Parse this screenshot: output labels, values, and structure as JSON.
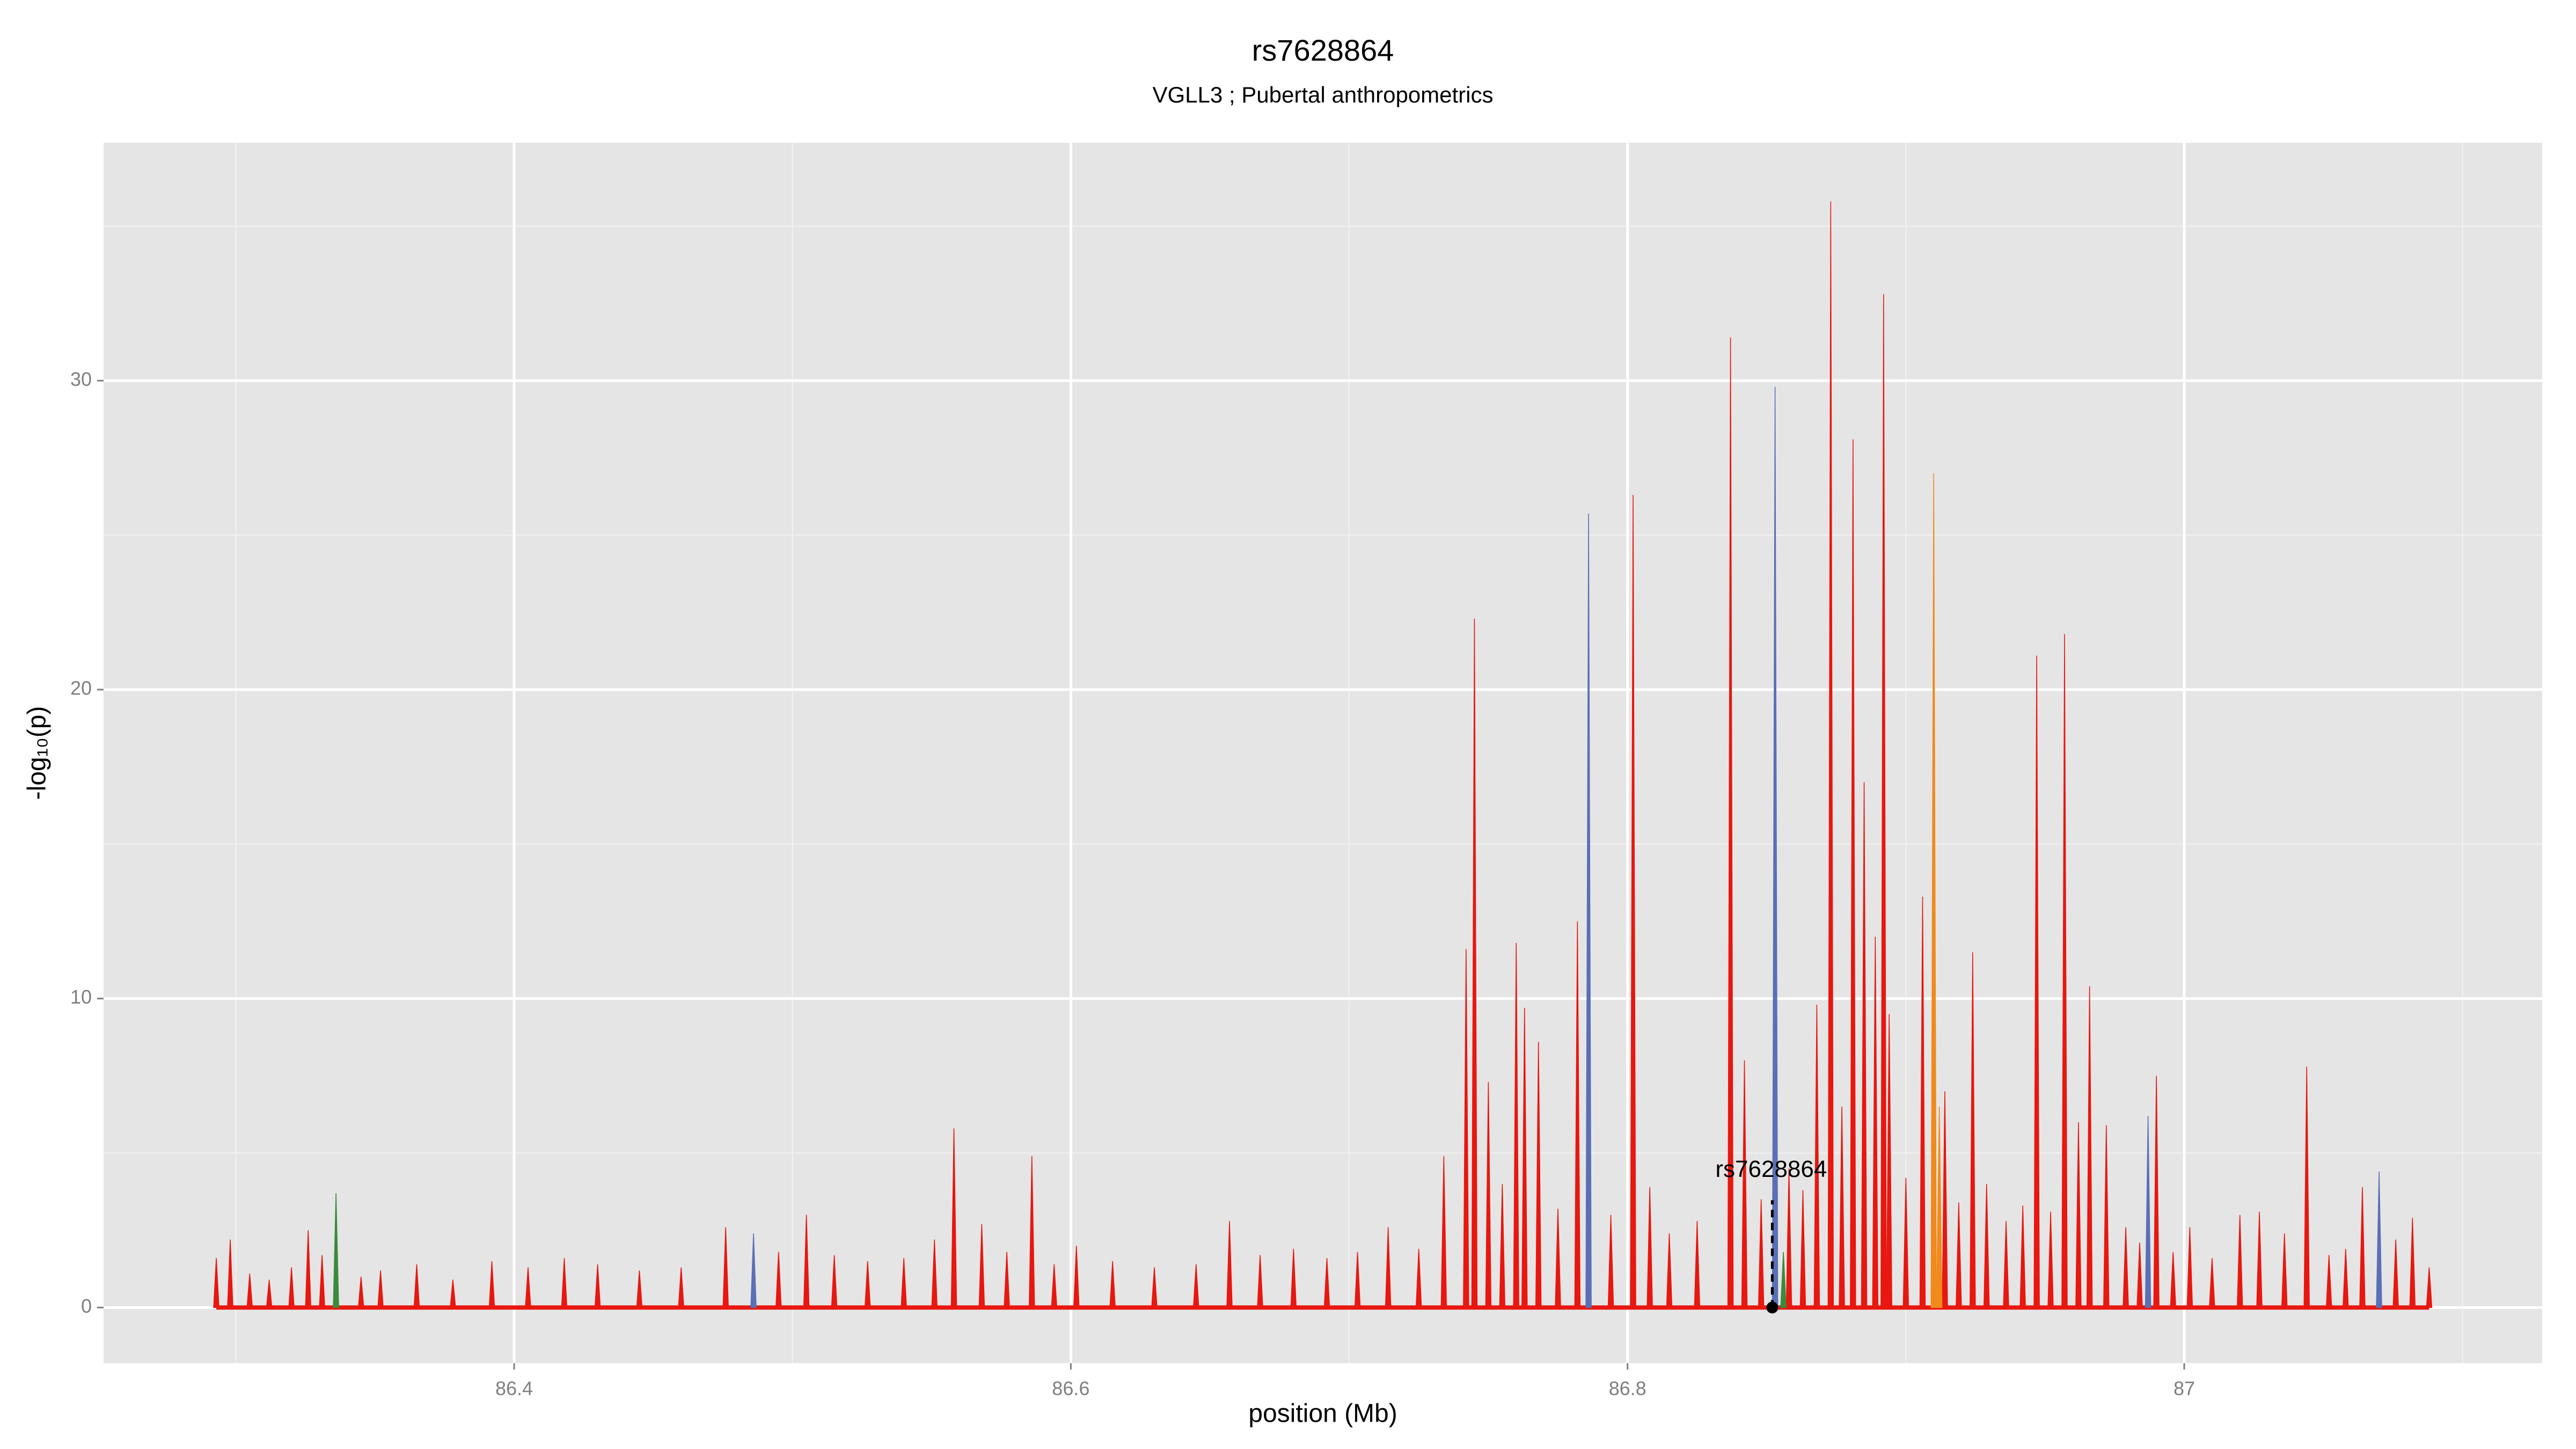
{
  "chart_data": {
    "type": "spike",
    "title": "rs7628864",
    "subtitle": "VGLL3 ; Pubertal anthropometrics",
    "x_label": "position (Mb)",
    "y_label": "-log₁₀(p)",
    "xlim": [
      86.2525,
      87.1286
    ],
    "ylim": [
      -1.8,
      37.7
    ],
    "xticks": [
      86.4,
      86.6,
      86.8,
      87.0
    ],
    "yticks": [
      0,
      10,
      20,
      30
    ],
    "xminor": [
      86.3,
      86.5,
      86.7,
      86.9,
      87.1
    ],
    "yminor": [
      5,
      15,
      25,
      35
    ],
    "grid": true,
    "series": [
      {
        "name": "red",
        "color": "#e8170f",
        "x": [
          86.293,
          86.298,
          86.305,
          86.312,
          86.32,
          86.326,
          86.331,
          86.345,
          86.352,
          86.365,
          86.378,
          86.392,
          86.405,
          86.418,
          86.43,
          86.445,
          86.46,
          86.476,
          86.495,
          86.505,
          86.515,
          86.527,
          86.54,
          86.551,
          86.558,
          86.568,
          86.577,
          86.586,
          86.594,
          86.602,
          86.615,
          86.63,
          86.645,
          86.657,
          86.668,
          86.68,
          86.692,
          86.703,
          86.714,
          86.725,
          86.734,
          86.742,
          86.745,
          86.75,
          86.755,
          86.76,
          86.763,
          86.768,
          86.775,
          86.782,
          86.794,
          86.802,
          86.808,
          86.815,
          86.825,
          86.837,
          86.842,
          86.848,
          86.858,
          86.863,
          86.868,
          86.873,
          86.877,
          86.881,
          86.885,
          86.889,
          86.892,
          86.894,
          86.9,
          86.906,
          86.914,
          86.919,
          86.924,
          86.929,
          86.936,
          86.942,
          86.947,
          86.952,
          86.957,
          86.962,
          86.966,
          86.972,
          86.979,
          86.984,
          86.99,
          86.996,
          87.002,
          87.01,
          87.02,
          87.027,
          87.036,
          87.044,
          87.052,
          87.058,
          87.064,
          87.076,
          87.082,
          87.088
        ],
        "values": [
          1.6,
          2.2,
          1.1,
          0.9,
          1.3,
          2.5,
          1.7,
          1.0,
          1.2,
          1.4,
          0.9,
          1.5,
          1.3,
          1.6,
          1.4,
          1.2,
          1.3,
          2.6,
          1.8,
          3.0,
          1.7,
          1.5,
          1.6,
          2.2,
          5.8,
          2.7,
          1.8,
          4.9,
          1.4,
          2.0,
          1.5,
          1.3,
          1.4,
          2.8,
          1.7,
          1.9,
          1.6,
          1.8,
          2.6,
          1.9,
          4.9,
          11.6,
          22.3,
          7.3,
          4.0,
          11.8,
          9.7,
          8.6,
          3.2,
          12.5,
          3.0,
          26.3,
          3.9,
          2.4,
          2.8,
          31.4,
          8.0,
          3.5,
          4.5,
          3.8,
          9.8,
          35.8,
          6.5,
          28.1,
          17.0,
          12.0,
          32.8,
          9.5,
          4.2,
          13.3,
          7.0,
          3.4,
          11.5,
          4.0,
          2.8,
          3.3,
          21.1,
          3.1,
          21.8,
          6.0,
          10.4,
          5.9,
          2.6,
          2.1,
          7.5,
          1.8,
          2.6,
          1.6,
          3.0,
          3.1,
          2.4,
          7.8,
          1.7,
          1.9,
          3.9,
          2.2,
          2.9,
          1.3
        ]
      },
      {
        "name": "orange",
        "color": "#f08a1c",
        "x": [
          86.91,
          86.912
        ],
        "values": [
          27.0,
          6.5
        ]
      },
      {
        "name": "blue",
        "color": "#5a6fb5",
        "x": [
          86.486,
          86.786,
          86.853,
          86.987,
          87.07
        ],
        "values": [
          2.4,
          25.7,
          29.8,
          6.2,
          4.4
        ]
      },
      {
        "name": "green",
        "color": "#3c8a3c",
        "x": [
          86.336,
          86.856
        ],
        "values": [
          3.7,
          1.8
        ]
      }
    ],
    "annotation": {
      "text": "rs7628864",
      "x": 86.852,
      "y": 0
    }
  }
}
